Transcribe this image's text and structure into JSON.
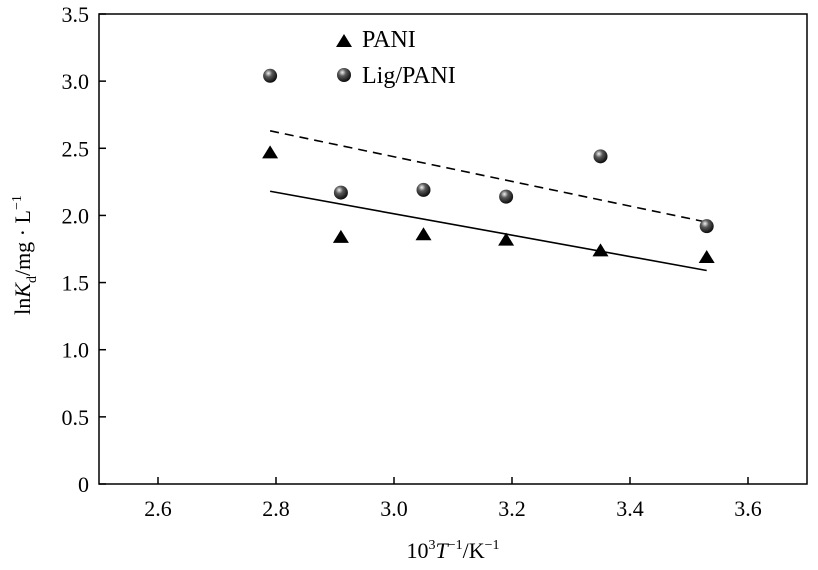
{
  "chart_data": {
    "type": "scatter",
    "xlim": [
      2.5,
      3.7
    ],
    "ylim": [
      0,
      3.5
    ],
    "x_ticks": [
      {
        "value": 2.6,
        "label": "2.6"
      },
      {
        "value": 2.8,
        "label": "2.8"
      },
      {
        "value": 3.0,
        "label": "3.0"
      },
      {
        "value": 3.2,
        "label": "3.2"
      },
      {
        "value": 3.4,
        "label": "3.4"
      },
      {
        "value": 3.6,
        "label": "3.6"
      }
    ],
    "y_ticks": [
      {
        "value": 0,
        "label": "0"
      },
      {
        "value": 0.5,
        "label": "0.5"
      },
      {
        "value": 1.0,
        "label": "1.0"
      },
      {
        "value": 1.5,
        "label": "1.5"
      },
      {
        "value": 2.0,
        "label": "2.0"
      },
      {
        "value": 2.5,
        "label": "2.5"
      },
      {
        "value": 3.0,
        "label": "3.0"
      },
      {
        "value": 3.5,
        "label": "3.5"
      }
    ],
    "xlabel": {
      "prefix": "10",
      "sup1": "3",
      "mid": "T",
      "sup2": "−1",
      "after": "/K",
      "sup3": "−1"
    },
    "ylabel": {
      "prefix": "ln",
      "mid": "K",
      "sub": "d",
      "after": "/mg · L",
      "sup": "−1"
    },
    "series": [
      {
        "name": "PANI",
        "marker": "triangle",
        "x": [
          2.79,
          2.91,
          3.05,
          3.19,
          3.35,
          3.53
        ],
        "y": [
          2.47,
          1.84,
          1.86,
          1.82,
          1.74,
          1.69
        ],
        "fit": {
          "style": "solid",
          "x": [
            2.79,
            3.53
          ],
          "y": [
            2.18,
            1.59
          ]
        }
      },
      {
        "name": "Lig/PANI",
        "marker": "sphere",
        "x": [
          2.79,
          2.91,
          3.05,
          3.19,
          3.35,
          3.53
        ],
        "y": [
          3.04,
          2.17,
          2.19,
          2.14,
          2.44,
          1.92
        ],
        "fit": {
          "style": "dashed",
          "x": [
            2.79,
            3.53
          ],
          "y": [
            2.63,
            1.95
          ]
        }
      }
    ],
    "legend_position": "top-center",
    "grid": false
  }
}
